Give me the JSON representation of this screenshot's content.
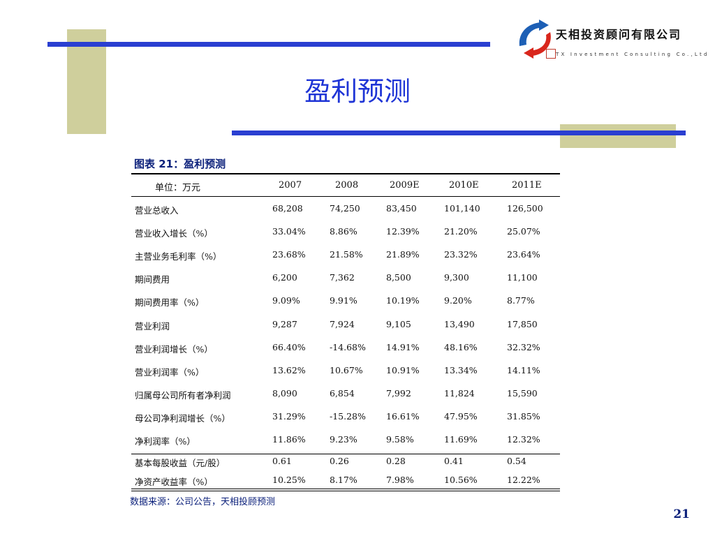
{
  "logo": {
    "company_cn": "天相投资顾问有限公司",
    "company_en": "TX Investment Consulting Co.,Ltd"
  },
  "title": "盈利预测",
  "table": {
    "caption": "图表 21：盈利预测",
    "unit": "单位：万元",
    "columns": [
      "2007",
      "2008",
      "2009E",
      "2010E",
      "2011E"
    ],
    "rows": [
      {
        "label": "营业总收入",
        "values": [
          "68,208",
          "74,250",
          "83,450",
          "101,140",
          "126,500"
        ]
      },
      {
        "label": "营业收入增长（%）",
        "values": [
          "33.04%",
          "8.86%",
          "12.39%",
          "21.20%",
          "25.07%"
        ]
      },
      {
        "label": "主营业务毛利率（%）",
        "values": [
          "23.68%",
          "21.58%",
          "21.89%",
          "23.32%",
          "23.64%"
        ]
      },
      {
        "label": "期间费用",
        "values": [
          "6,200",
          "7,362",
          "8,500",
          "9,300",
          "11,100"
        ]
      },
      {
        "label": "期间费用率（%）",
        "values": [
          "9.09%",
          "9.91%",
          "10.19%",
          "9.20%",
          "8.77%"
        ]
      },
      {
        "label": "营业利润",
        "values": [
          "9,287",
          "7,924",
          "9,105",
          "13,490",
          "17,850"
        ]
      },
      {
        "label": "营业利润增长（%）",
        "values": [
          "66.40%",
          "-14.68%",
          "14.91%",
          "48.16%",
          "32.32%"
        ]
      },
      {
        "label": "营业利润率（%）",
        "values": [
          "13.62%",
          "10.67%",
          "10.91%",
          "13.34%",
          "14.11%"
        ]
      },
      {
        "label": "归属母公司所有者净利润",
        "values": [
          "8,090",
          "6,854",
          "7,992",
          "11,824",
          "15,590"
        ]
      },
      {
        "label": "母公司净利润增长（%）",
        "values": [
          "31.29%",
          "-15.28%",
          "16.61%",
          "47.95%",
          "31.85%"
        ]
      },
      {
        "label": "净利润率（%）",
        "values": [
          "11.86%",
          "9.23%",
          "9.58%",
          "11.69%",
          "12.32%"
        ]
      }
    ],
    "footer_rows": [
      {
        "label": "基本每股收益（元/股）",
        "values": [
          "0.61",
          "0.26",
          "0.28",
          "0.41",
          "0.54"
        ]
      },
      {
        "label": "净资产收益率（%）",
        "values": [
          "10.25%",
          "8.17%",
          "7.98%",
          "10.56%",
          "12.22%"
        ]
      }
    ]
  },
  "source_note": "数据来源：公司公告，天相投顾预测",
  "page_number": "21",
  "colors": {
    "accent_blue": "#2a3fd1",
    "title_blue": "#1f35d6",
    "olive": "#cfcf9c",
    "caption_navy": "#0a1f7a",
    "logo_red": "#d9261c",
    "logo_blue": "#1d5fb5"
  }
}
